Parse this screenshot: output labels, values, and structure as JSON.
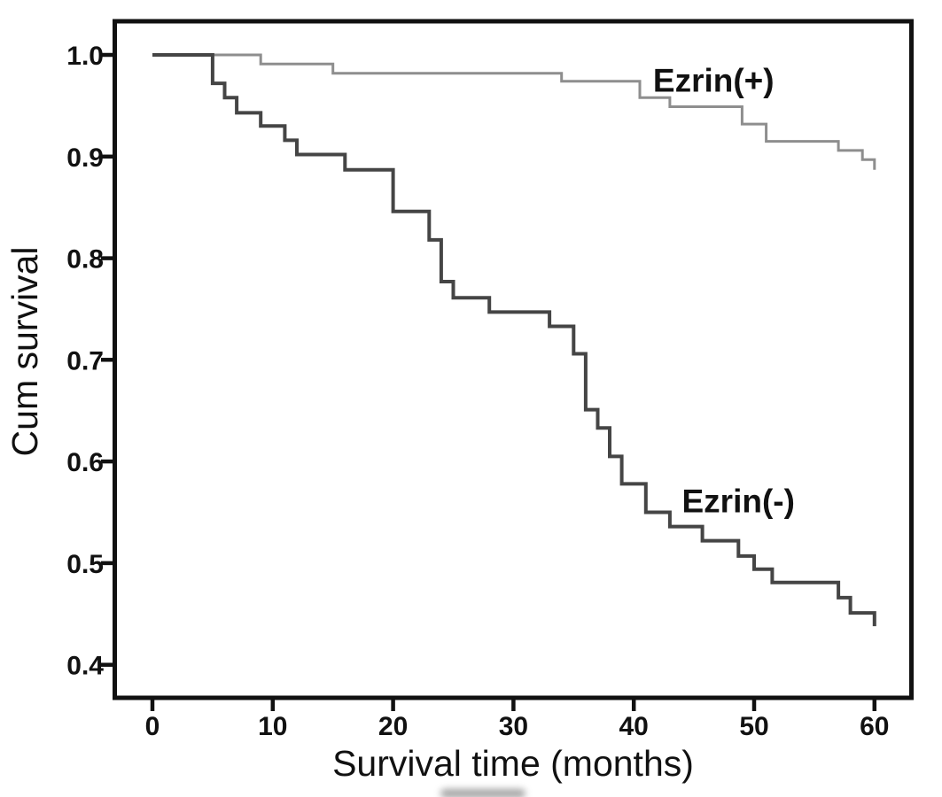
{
  "figure": {
    "background_color": "#ffffff",
    "frame_color": "#111111",
    "text_color": "#111111"
  },
  "chart_data": {
    "type": "line",
    "subtype": "kaplan-meier-step",
    "title": "",
    "xlabel": "Survival time (months)",
    "ylabel": "Cum survival",
    "xlim": [
      -3.3,
      63.2
    ],
    "ylim": [
      0.368,
      1.033
    ],
    "x_ticks": [
      0,
      10,
      20,
      30,
      40,
      50,
      60
    ],
    "y_ticks": [
      1.0,
      0.9,
      0.8,
      0.7,
      0.6,
      0.5,
      0.4
    ],
    "y_tick_labels": [
      "1.0",
      "0.9",
      "0.8",
      "0.7",
      "0.6",
      "0.5",
      "0.4"
    ],
    "grid": false,
    "legend_position": "inline-annotations",
    "axis_color": "#111111",
    "series": [
      {
        "id": "ezrin-plus",
        "name": "Ezrin(+)",
        "color": "#8e8e8e",
        "line_width": 3,
        "start": [
          0,
          1.0
        ],
        "steps": [
          [
            9,
            0.991
          ],
          [
            15,
            0.982
          ],
          [
            34,
            0.974
          ],
          [
            40.5,
            0.958
          ],
          [
            43,
            0.949
          ],
          [
            49,
            0.932
          ],
          [
            51,
            0.915
          ],
          [
            57,
            0.906
          ],
          [
            59,
            0.897
          ],
          [
            60,
            0.887
          ]
        ],
        "label": {
          "text": "Ezrin(+)",
          "x": 41.6,
          "y": 0.964
        }
      },
      {
        "id": "ezrin-minus",
        "name": "Ezrin(-)",
        "color": "#454545",
        "line_width": 4,
        "start": [
          0,
          1.0
        ],
        "steps": [
          [
            5,
            0.972
          ],
          [
            6,
            0.958
          ],
          [
            7,
            0.943
          ],
          [
            9,
            0.93
          ],
          [
            11,
            0.916
          ],
          [
            12,
            0.902
          ],
          [
            16,
            0.887
          ],
          [
            20,
            0.846
          ],
          [
            23,
            0.818
          ],
          [
            24,
            0.777
          ],
          [
            25,
            0.761
          ],
          [
            28,
            0.747
          ],
          [
            33,
            0.733
          ],
          [
            35,
            0.706
          ],
          [
            36,
            0.651
          ],
          [
            37,
            0.633
          ],
          [
            38,
            0.605
          ],
          [
            39,
            0.578
          ],
          [
            41,
            0.55
          ],
          [
            43,
            0.536
          ],
          [
            45.7,
            0.522
          ],
          [
            48.7,
            0.507
          ],
          [
            50,
            0.494
          ],
          [
            51.5,
            0.481
          ],
          [
            57,
            0.466
          ],
          [
            58,
            0.451
          ],
          [
            60,
            0.438
          ]
        ],
        "label": {
          "text": "Ezrin(-)",
          "x": 44.0,
          "y": 0.55
        }
      }
    ]
  }
}
